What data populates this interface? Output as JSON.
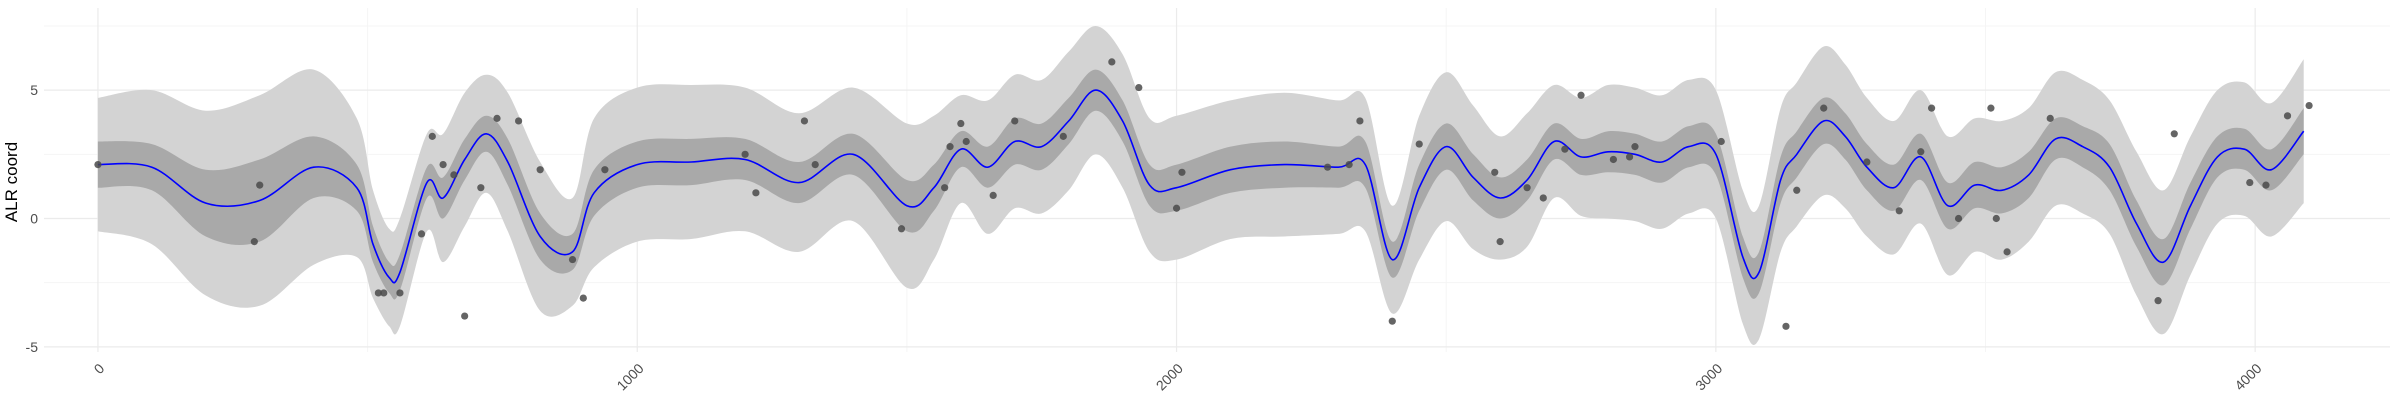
{
  "chart_data": {
    "type": "line",
    "title": "",
    "xlabel": "",
    "ylabel": "ALR coord",
    "xlim": [
      -100,
      4250
    ],
    "ylim": [
      -5.2,
      8.2
    ],
    "x_ticks": [
      0,
      1000,
      2000,
      3000,
      4000
    ],
    "x_tick_labels": [
      "0",
      "1000",
      "2000",
      "3000",
      "4000"
    ],
    "y_ticks": [
      -5,
      0,
      5
    ],
    "y_tick_labels": [
      "-5",
      "0",
      "5"
    ],
    "grid": true,
    "legend": "none",
    "colors": {
      "mean_line": "#0000ff",
      "inner_band": "#a9a9a9",
      "outer_band": "#d3d3d3",
      "points": "#4a4a4a",
      "grid_major": "#ebebeb",
      "grid_minor": "#f5f5f5"
    },
    "mean": {
      "x": [
        0,
        100,
        200,
        300,
        400,
        480,
        510,
        540,
        560,
        610,
        640,
        680,
        720,
        760,
        820,
        880,
        920,
        1000,
        1100,
        1200,
        1300,
        1400,
        1500,
        1550,
        1600,
        1650,
        1700,
        1750,
        1800,
        1850,
        1900,
        1950,
        2000,
        2100,
        2200,
        2300,
        2350,
        2400,
        2450,
        2500,
        2550,
        2600,
        2650,
        2700,
        2750,
        2800,
        2850,
        2900,
        2950,
        3000,
        3050,
        3080,
        3120,
        3150,
        3200,
        3240,
        3280,
        3330,
        3380,
        3430,
        3480,
        3530,
        3580,
        3630,
        3680,
        3730,
        3780,
        3830,
        3880,
        3930,
        3980,
        4030,
        4090
      ],
      "y": [
        2.1,
        2.0,
        0.6,
        0.7,
        2.0,
        1.2,
        -1.0,
        -2.3,
        -2.1,
        1.4,
        0.8,
        2.3,
        3.3,
        2.2,
        -0.7,
        -1.3,
        1.0,
        2.1,
        2.2,
        2.3,
        1.4,
        2.5,
        0.5,
        1.2,
        2.7,
        2.0,
        3.0,
        2.8,
        3.8,
        5.0,
        3.8,
        1.3,
        1.2,
        1.9,
        2.1,
        2.0,
        2.1,
        -1.6,
        1.2,
        2.8,
        1.6,
        0.8,
        1.5,
        3.0,
        2.4,
        2.6,
        2.5,
        2.2,
        2.8,
        2.5,
        -1.5,
        -2.1,
        1.5,
        2.5,
        3.8,
        3.2,
        2.0,
        1.2,
        2.4,
        0.5,
        1.3,
        1.1,
        1.7,
        3.1,
        2.8,
        2.0,
        -0.2,
        -1.7,
        0.5,
        2.4,
        2.7,
        1.9,
        3.4
      ]
    },
    "inner_band_halfwidth": [
      0.9,
      0.9,
      1.3,
      1.6,
      1.2,
      0.9,
      0.7,
      0.6,
      0.7,
      0.6,
      0.8,
      0.8,
      0.7,
      0.9,
      0.9,
      0.7,
      0.9,
      0.9,
      0.9,
      0.8,
      0.8,
      0.8,
      1.0,
      0.9,
      0.7,
      0.8,
      0.9,
      0.9,
      0.9,
      0.8,
      0.8,
      0.8,
      0.9,
      0.9,
      0.9,
      0.8,
      0.9,
      0.7,
      0.9,
      0.9,
      0.9,
      0.8,
      0.8,
      0.7,
      0.7,
      0.8,
      0.8,
      0.8,
      0.8,
      0.8,
      0.8,
      0.8,
      0.9,
      0.9,
      0.9,
      0.9,
      0.9,
      0.9,
      0.9,
      0.9,
      0.9,
      0.9,
      0.9,
      0.8,
      0.8,
      0.9,
      0.9,
      0.9,
      0.9,
      0.8,
      0.8,
      0.8,
      0.9
    ],
    "outer_band_halfwidth": [
      2.6,
      3.0,
      3.6,
      4.1,
      3.8,
      2.7,
      2.1,
      1.9,
      2.1,
      1.9,
      2.5,
      2.6,
      2.3,
      2.7,
      2.9,
      2.1,
      2.9,
      3.0,
      3.0,
      2.8,
      2.7,
      2.6,
      3.2,
      2.8,
      2.1,
      2.6,
      2.6,
      2.6,
      2.7,
      2.5,
      2.6,
      2.6,
      2.8,
      2.7,
      2.8,
      2.6,
      2.6,
      2.1,
      2.8,
      2.9,
      2.8,
      2.4,
      2.6,
      2.2,
      2.3,
      2.6,
      2.6,
      2.6,
      2.6,
      2.5,
      2.6,
      2.6,
      2.8,
      2.8,
      2.9,
      2.8,
      2.7,
      2.6,
      2.6,
      2.7,
      2.6,
      2.7,
      2.6,
      2.6,
      2.6,
      2.6,
      2.8,
      2.8,
      2.7,
      2.6,
      2.6,
      2.6,
      2.8
    ],
    "points": {
      "x": [
        0,
        290,
        300,
        520,
        530,
        560,
        600,
        620,
        640,
        660,
        680,
        710,
        740,
        780,
        820,
        880,
        900,
        940,
        1200,
        1220,
        1310,
        1330,
        1490,
        1570,
        1580,
        1600,
        1610,
        1660,
        1700,
        1790,
        1880,
        1930,
        2000,
        2010,
        2280,
        2320,
        2340,
        2400,
        2450,
        2590,
        2600,
        2650,
        2680,
        2720,
        2750,
        2810,
        2840,
        2850,
        3010,
        3130,
        3150,
        3200,
        3280,
        3340,
        3380,
        3400,
        3450,
        3510,
        3520,
        3540,
        3620,
        3820,
        3850,
        3990,
        4020,
        4060,
        4100
      ],
      "y": [
        2.1,
        -0.9,
        1.3,
        -2.9,
        -2.9,
        -2.9,
        -0.6,
        3.2,
        2.1,
        1.7,
        -3.8,
        1.2,
        3.9,
        3.8,
        1.9,
        -1.6,
        -3.1,
        1.9,
        2.5,
        1.0,
        3.8,
        2.1,
        -0.4,
        1.2,
        2.8,
        3.7,
        3.0,
        0.9,
        3.8,
        3.2,
        6.1,
        5.1,
        0.4,
        1.8,
        2.0,
        2.1,
        3.8,
        -4.0,
        2.9,
        1.8,
        -0.9,
        1.2,
        0.8,
        2.7,
        4.8,
        2.3,
        2.4,
        2.8,
        3.0,
        -4.2,
        1.1,
        4.3,
        2.2,
        0.3,
        2.6,
        4.3,
        0.0,
        4.3,
        0.0,
        -1.3,
        3.9,
        -3.2,
        3.3,
        1.4,
        1.3,
        4.0,
        4.4
      ]
    }
  }
}
